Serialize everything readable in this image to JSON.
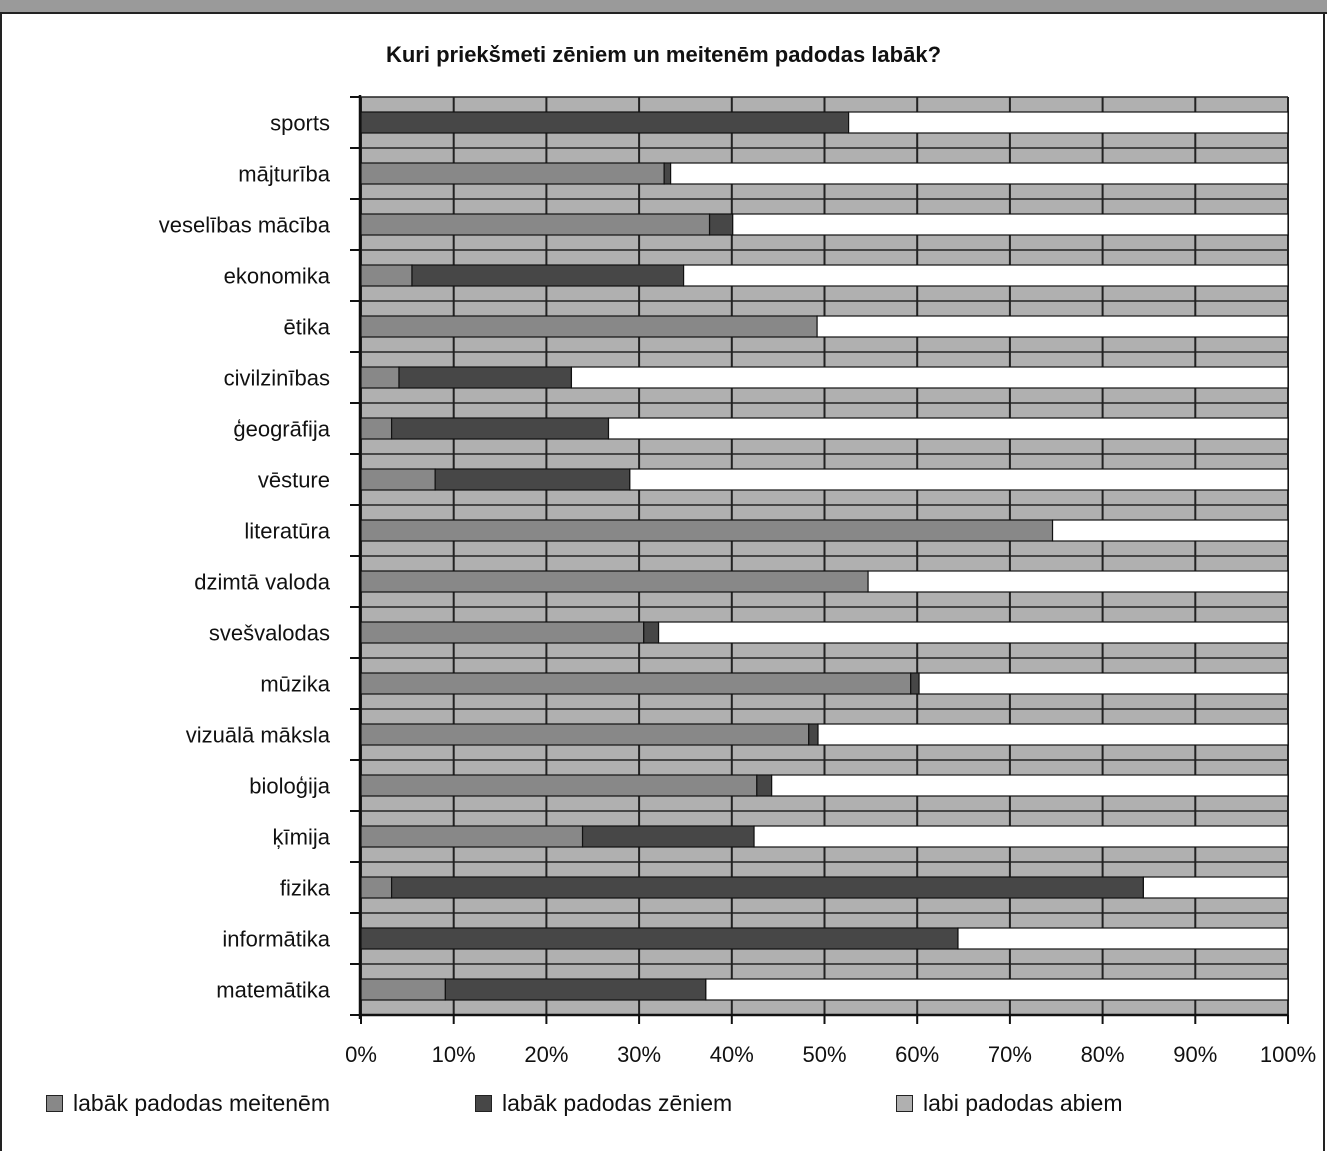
{
  "colors": {
    "girls": "#888888",
    "boys": "#474747",
    "both": "#ffffff",
    "plot_background": "#b0b0b0",
    "grid": "#222222"
  },
  "chart_data": {
    "type": "bar",
    "orientation": "horizontal",
    "stacked": "percent",
    "title": "Kuri priekšmeti zēniem un meitenēm padodas labāk?",
    "categories": [
      "sports",
      "mājturība",
      "veselības mācība",
      "ekonomika",
      "ētika",
      "civilzinības",
      "ģeogrāfija",
      "vēsture",
      "literatūra",
      "dzimtā valoda",
      "svešvalodas",
      "mūzika",
      "vizuālā māksla",
      "bioloģija",
      "ķīmija",
      "fizika",
      "informātika",
      "matemātika"
    ],
    "series": [
      {
        "name": "labāk padodas meitenēm",
        "color": "#888888",
        "values": [
          0,
          32.7,
          37.6,
          5.5,
          49.2,
          4.1,
          3.3,
          8.0,
          74.6,
          54.7,
          30.5,
          59.3,
          48.3,
          42.7,
          23.9,
          3.3,
          0,
          9.1
        ]
      },
      {
        "name": "labāk padodas zēniem",
        "color": "#474747",
        "values": [
          52.6,
          0.7,
          2.5,
          29.3,
          0,
          18.6,
          23.4,
          21.0,
          0,
          0,
          1.6,
          0.9,
          1.0,
          1.6,
          18.5,
          81.1,
          64.4,
          28.1
        ]
      },
      {
        "name": "labi padodas abiem",
        "color": "#ffffff",
        "values": [
          47.4,
          66.6,
          59.9,
          65.2,
          50.8,
          77.3,
          73.3,
          71.0,
          25.4,
          45.3,
          67.9,
          39.8,
          50.7,
          55.7,
          57.6,
          15.6,
          35.6,
          62.8
        ]
      }
    ],
    "x_ticks": [
      "0%",
      "10%",
      "20%",
      "30%",
      "40%",
      "50%",
      "60%",
      "70%",
      "80%",
      "90%",
      "100%"
    ],
    "xlim": [
      0,
      100
    ],
    "grid": true,
    "legend_position": "bottom"
  }
}
